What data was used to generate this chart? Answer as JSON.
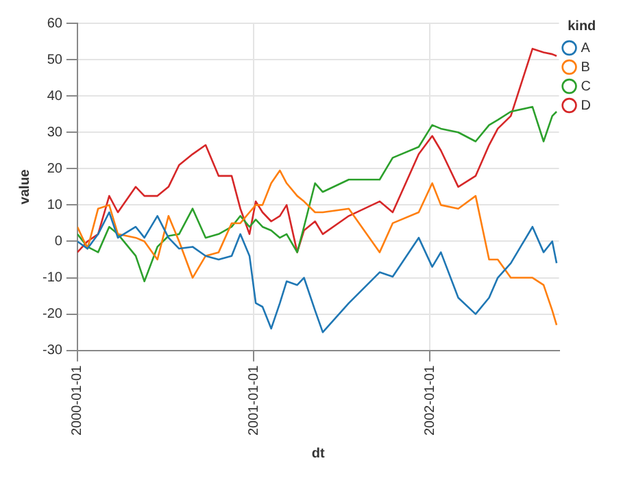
{
  "chart_data": {
    "type": "line",
    "xlabel": "dt",
    "ylabel": "value",
    "legend_title": "kind",
    "legend": "top right",
    "grid": true,
    "marker": "none",
    "line_style": "solid",
    "xlim": [
      "2000-01-01",
      "2002-09-26"
    ],
    "xticks": [
      "2000-01-01",
      "2001-01-01",
      "2002-01-01"
    ],
    "ylim": [
      -30,
      60
    ],
    "yticks": [
      -30,
      -20,
      -10,
      0,
      10,
      20,
      30,
      40,
      50,
      60
    ],
    "x": [
      "2000-01-01",
      "2000-01-22",
      "2000-02-13",
      "2000-03-07",
      "2000-03-25",
      "2000-05-01",
      "2000-05-19",
      "2000-06-15",
      "2000-07-08",
      "2000-07-30",
      "2000-08-27",
      "2000-09-23",
      "2000-10-20",
      "2000-11-16",
      "2000-12-04",
      "2000-12-23",
      "2001-01-05",
      "2001-01-19",
      "2001-02-06",
      "2001-02-24",
      "2001-03-10",
      "2001-04-01",
      "2001-04-15",
      "2001-05-08",
      "2001-05-24",
      "2001-07-17",
      "2001-09-19",
      "2001-10-16",
      "2001-12-09",
      "2002-01-06",
      "2002-01-24",
      "2002-03-01",
      "2002-04-06",
      "2002-05-04",
      "2002-05-22",
      "2002-06-18",
      "2002-08-02",
      "2002-08-25",
      "2002-09-12",
      "2002-09-21"
    ],
    "series": [
      {
        "name": "A",
        "color": "#1f77b4",
        "values": [
          0,
          -2,
          2,
          8,
          1,
          4,
          1,
          7,
          1,
          -2,
          -1.5,
          -4,
          -5,
          -4,
          2,
          -4,
          -17,
          -18,
          -24,
          -17,
          -11,
          -12,
          -10,
          -19,
          -25,
          -17,
          -8.5,
          -9.7,
          1,
          -7,
          -3,
          -15.5,
          -20,
          -15.5,
          -10,
          -6,
          4,
          -3,
          0,
          -6
        ]
      },
      {
        "name": "B",
        "color": "#ff7f0e",
        "values": [
          4,
          -2,
          9,
          10,
          2,
          1,
          0,
          -5,
          7,
          0,
          -10,
          -4,
          -3,
          5,
          5,
          8,
          10,
          10,
          16,
          19.5,
          16,
          12.5,
          11,
          8,
          8,
          9,
          -3,
          5,
          8,
          16,
          10,
          9,
          12.5,
          -5,
          -5,
          -10,
          -10,
          -12,
          -19,
          -23
        ]
      },
      {
        "name": "C",
        "color": "#2ca02c",
        "values": [
          2,
          -1.5,
          -3,
          4,
          2,
          -4,
          -11,
          -1.5,
          1.5,
          2,
          9,
          1,
          2,
          4,
          7,
          4,
          6,
          4,
          3,
          1,
          2,
          -3,
          4,
          16,
          13.6,
          17,
          17,
          23,
          26,
          32,
          31,
          30,
          27.5,
          32,
          33.4,
          35.7,
          37,
          27.5,
          34.5,
          35.7
        ]
      },
      {
        "name": "D",
        "color": "#d62728",
        "values": [
          -3,
          0,
          2,
          12.5,
          8,
          15,
          12.5,
          12.5,
          15,
          21,
          24,
          26.5,
          18,
          18,
          9,
          2,
          11,
          8,
          5.5,
          7,
          10,
          -3,
          3,
          5.5,
          2,
          7,
          11,
          8,
          24,
          29,
          25,
          15,
          18,
          26.5,
          31,
          34.5,
          53,
          52,
          51.5,
          51
        ]
      }
    ]
  }
}
